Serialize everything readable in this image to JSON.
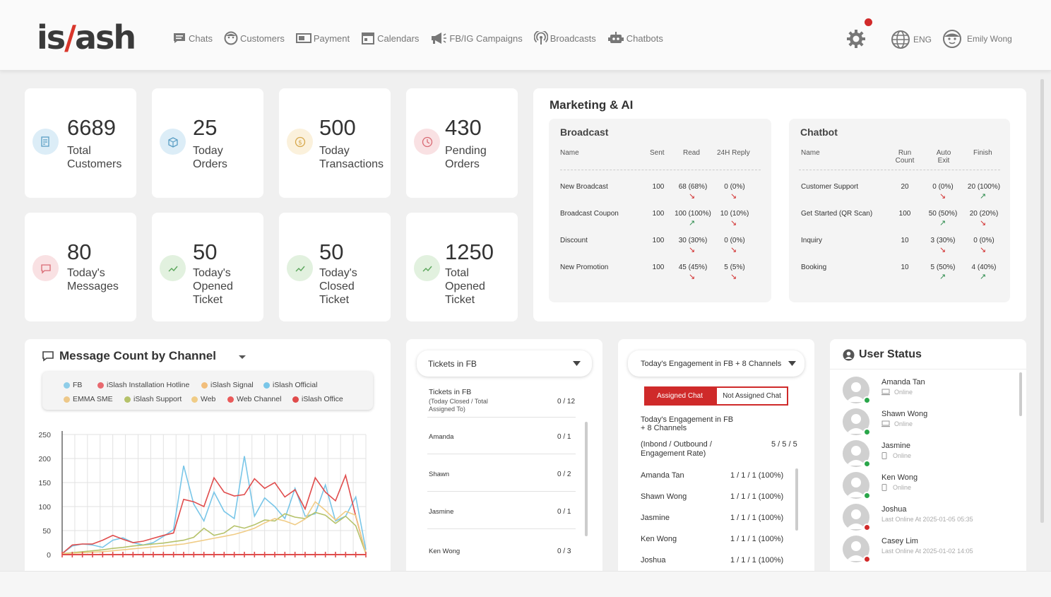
{
  "brand": {
    "pre": "is",
    "slash": "/",
    "post": "ash"
  },
  "nav": {
    "items": [
      {
        "label": "Chats",
        "icon": "chat-icon"
      },
      {
        "label": "Customers",
        "icon": "customers-icon"
      },
      {
        "label": "Payment",
        "icon": "payment-icon"
      },
      {
        "label": "Calendars",
        "icon": "calendar-icon"
      },
      {
        "label": "FB/IG Campaigns",
        "icon": "megaphone-icon"
      },
      {
        "label": "Broadcasts",
        "icon": "broadcast-icon"
      },
      {
        "label": "Chatbots",
        "icon": "robot-icon"
      }
    ],
    "language": "ENG",
    "user_name": "Emily Wong"
  },
  "stats": [
    {
      "value": "6689",
      "line1": "Total",
      "line2": "Customers",
      "line3": "",
      "color": "#dcedf7"
    },
    {
      "value": "25",
      "line1": "Today",
      "line2": "Orders",
      "line3": "",
      "color": "#dcedf7"
    },
    {
      "value": "500",
      "line1": "Today",
      "line2": "Transactions",
      "line3": "",
      "color": "#fbf1dc"
    },
    {
      "value": "430",
      "line1": "Pending",
      "line2": "Orders",
      "line3": "",
      "color": "#f9e1e3"
    },
    {
      "value": "80",
      "line1": "Today's",
      "line2": "Messages",
      "line3": "",
      "color": "#f9e1e3"
    },
    {
      "value": "50",
      "line1": "Today's",
      "line2": "Opened",
      "line3": "Ticket",
      "color": "#e2f1df"
    },
    {
      "value": "50",
      "line1": "Today's",
      "line2": "Closed",
      "line3": "Ticket",
      "color": "#e2f1df"
    },
    {
      "value": "1250",
      "line1": "Total",
      "line2": "Opened",
      "line3": "Ticket",
      "color": "#e2f1df"
    }
  ],
  "marketing": {
    "title": "Marketing & AI",
    "broadcast": {
      "title": "Broadcast",
      "headers": [
        "Name",
        "Sent",
        "Read",
        "24H Reply"
      ],
      "rows": [
        {
          "name": "New Broadcast",
          "sent": "100",
          "read": "68 (68%)",
          "reply": "0 (0%)",
          "read_trend": "down",
          "reply_trend": "down"
        },
        {
          "name": "Broadcast Coupon",
          "sent": "100",
          "read": "100 (100%)",
          "reply": "10 (10%)",
          "read_trend": "up",
          "reply_trend": "down"
        },
        {
          "name": "Discount",
          "sent": "100",
          "read": "30 (30%)",
          "reply": "0 (0%)",
          "read_trend": "down",
          "reply_trend": "down"
        },
        {
          "name": "New Promotion",
          "sent": "100",
          "read": "45 (45%)",
          "reply": "5 (5%)",
          "read_trend": "down",
          "reply_trend": "down"
        }
      ]
    },
    "chatbot": {
      "title": "Chatbot",
      "headers": [
        "Name",
        "Run",
        "Count",
        "Auto",
        "Exit",
        "Finish"
      ],
      "rows": [
        {
          "name": "Customer Support",
          "run": "20",
          "auto": "0 (0%)",
          "finish": "20 (100%)",
          "auto_trend": "down",
          "finish_trend": "up"
        },
        {
          "name": "Get Started (QR Scan)",
          "run": "100",
          "auto": "50 (50%)",
          "finish": "20 (20%)",
          "auto_trend": "up",
          "finish_trend": "down"
        },
        {
          "name": "Inquiry",
          "run": "10",
          "auto": "3 (30%)",
          "finish": "0 (0%)",
          "auto_trend": "down",
          "finish_trend": "down"
        },
        {
          "name": "Booking",
          "run": "10",
          "auto": "5 (50%)",
          "finish": "4 (40%)",
          "auto_trend": "up",
          "finish_trend": "up"
        }
      ]
    }
  },
  "message_count": {
    "title": "Message Count by Channel",
    "legend": [
      {
        "name": "FB",
        "color": "#8ecde8"
      },
      {
        "name": "iSlash Installation Hotline",
        "color": "#e8696f"
      },
      {
        "name": "iSlash Signal",
        "color": "#f2be7b"
      },
      {
        "name": "iSlash Official",
        "color": "#79c6e8"
      },
      {
        "name": "EMMA SME",
        "color": "#edc889"
      },
      {
        "name": "iSlash Support",
        "color": "#b5c26a"
      },
      {
        "name": "Web",
        "color": "#f0cc86"
      },
      {
        "name": "Web Channel",
        "color": "#ea5a5a"
      },
      {
        "name": "iSlash Office",
        "color": "#e04c4c"
      }
    ]
  },
  "chart_data": {
    "type": "line",
    "title": "Message Count by Channel",
    "ylim": [
      0,
      250
    ],
    "yticks": [
      "250",
      "200",
      "150",
      "100",
      "50",
      "0"
    ],
    "x": [
      1,
      2,
      3,
      4,
      5,
      6,
      7,
      8,
      9,
      10,
      11,
      12,
      13,
      14,
      15,
      16,
      17,
      18,
      19,
      20,
      21,
      22,
      23,
      24,
      25,
      26,
      27,
      28,
      29,
      30,
      31
    ],
    "series": [
      {
        "name": "iSlash Official",
        "color": "#79c6e8",
        "values": [
          2,
          18,
          22,
          20,
          15,
          30,
          35,
          25,
          20,
          25,
          38,
          52,
          185,
          105,
          70,
          130,
          90,
          75,
          205,
          80,
          118,
          100,
          75,
          138,
          80,
          85,
          145,
          70,
          80,
          120,
          10
        ]
      },
      {
        "name": "Web Channel",
        "color": "#e04c4c",
        "values": [
          2,
          20,
          22,
          22,
          30,
          40,
          32,
          25,
          28,
          34,
          40,
          45,
          115,
          110,
          100,
          160,
          130,
          122,
          125,
          158,
          138,
          150,
          120,
          135,
          95,
          160,
          130,
          112,
          165,
          80,
          2
        ]
      },
      {
        "name": "iSlash Support",
        "color": "#b5c26a",
        "values": [
          2,
          4,
          6,
          8,
          10,
          13,
          15,
          18,
          20,
          22,
          24,
          27,
          30,
          36,
          55,
          40,
          45,
          60,
          55,
          62,
          72,
          70,
          85,
          78,
          75,
          88,
          82,
          65,
          80,
          60,
          2
        ]
      },
      {
        "name": "Web",
        "color": "#f0cc86",
        "values": [
          2,
          3,
          4,
          5,
          6,
          8,
          10,
          12,
          14,
          16,
          18,
          20,
          22,
          26,
          30,
          34,
          38,
          42,
          48,
          55,
          66,
          75,
          70,
          62,
          74,
          110,
          92,
          72,
          90,
          82,
          2
        ]
      }
    ]
  },
  "tickets": {
    "dropdown": "Tickets in FB",
    "header_title": "Tickets in FB",
    "header_sub1": "(Today Closed / Total",
    "header_sub2": "Assigned To)",
    "header_value": "0 / 12",
    "rows": [
      {
        "name": "Amanda",
        "value": "0 / 1"
      },
      {
        "name": "Shawn",
        "value": "0 / 2"
      },
      {
        "name": "Jasmine",
        "value": "0 / 1"
      },
      {
        "name": "Ken Wong",
        "value": "0 / 3"
      }
    ]
  },
  "engagement": {
    "dropdown": "Today's Engagement in FB + 8 Channels",
    "tab_assigned": "Assigned Chat",
    "tab_not_assigned": "Not Assigned Chat",
    "title1": "Today's Engagement in FB",
    "title2": "+ 8 Channels",
    "rate1": "(Inbond / Outbound /",
    "rate2": "Engagement Rate)",
    "total": "5 / 5 / 5",
    "rows": [
      {
        "name": "Amanda Tan",
        "value": "1 / 1 / 1 (100%)"
      },
      {
        "name": "Shawn Wong",
        "value": "1 / 1 / 1 (100%)"
      },
      {
        "name": "Jasmine",
        "value": "1 / 1 / 1 (100%)"
      },
      {
        "name": "Ken Wong",
        "value": "1 / 1 / 1 (100%)"
      },
      {
        "name": "Joshua",
        "value": "1 / 1 / 1 (100%)"
      }
    ]
  },
  "user_status": {
    "title": "User Status",
    "users": [
      {
        "name": "Amanda Tan",
        "status": "Online",
        "online": true,
        "device": "desktop"
      },
      {
        "name": "Shawn Wong",
        "status": "Online",
        "online": true,
        "device": "desktop"
      },
      {
        "name": "Jasmine",
        "status": "Online",
        "online": true,
        "device": "mobile"
      },
      {
        "name": "Ken Wong",
        "status": "Online",
        "online": true,
        "device": "mobile"
      },
      {
        "name": "Joshua",
        "status": "Last Online At 2025-01-05  05:35",
        "online": false,
        "device": ""
      },
      {
        "name": "Casey Lim",
        "status": "Last Online At 2025-01-02  14:05",
        "online": false,
        "device": ""
      }
    ]
  }
}
